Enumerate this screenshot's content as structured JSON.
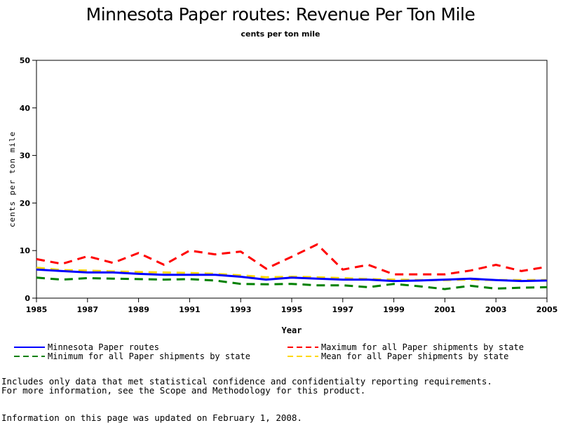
{
  "chart_data": {
    "type": "line",
    "title": "Minnesota Paper routes: Revenue Per Ton Mile",
    "subtitle": "cents per ton mile",
    "xlabel": "Year",
    "ylabel": "cents per ton mile",
    "xlim": [
      1985,
      2005
    ],
    "ylim": [
      0,
      50
    ],
    "xticks": [
      "1985",
      "1987",
      "1989",
      "1991",
      "1993",
      "1995",
      "1997",
      "1999",
      "2001",
      "2003",
      "2005"
    ],
    "yticks": [
      "0",
      "10",
      "20",
      "30",
      "40",
      "50"
    ],
    "grid": false,
    "x": [
      1985,
      1986,
      1987,
      1988,
      1989,
      1990,
      1991,
      1992,
      1993,
      1994,
      1995,
      1996,
      1997,
      1998,
      1999,
      2000,
      2001,
      2002,
      2003,
      2004,
      2005
    ],
    "series": [
      {
        "name": "Minnesota Paper routes",
        "color": "#0000ff",
        "style": "solid",
        "values": [
          6.0,
          5.7,
          5.4,
          5.4,
          5.1,
          4.9,
          4.9,
          4.9,
          4.5,
          3.9,
          4.3,
          4.1,
          3.9,
          3.9,
          3.6,
          3.7,
          3.9,
          4.1,
          3.8,
          3.6,
          3.7
        ]
      },
      {
        "name": "Maximum for all Paper shipments by state",
        "color": "#ff0000",
        "style": "dashed",
        "values": [
          8.2,
          7.2,
          8.8,
          7.4,
          9.5,
          7.0,
          10.0,
          9.2,
          9.8,
          6.2,
          8.7,
          11.3,
          6.0,
          7.0,
          5.0,
          5.0,
          5.0,
          5.8,
          7.0,
          5.7,
          6.6
        ]
      },
      {
        "name": "Minimum for all Paper shipments by state",
        "color": "#008000",
        "style": "dashed",
        "values": [
          4.3,
          3.9,
          4.2,
          4.1,
          4.0,
          3.9,
          4.0,
          3.7,
          3.0,
          2.9,
          3.0,
          2.7,
          2.7,
          2.3,
          3.0,
          2.5,
          1.9,
          2.6,
          2.0,
          2.2,
          2.3
        ]
      },
      {
        "name": "Mean for all Paper shipments by state",
        "color": "#ffd700",
        "style": "dashed",
        "values": [
          6.4,
          5.9,
          5.8,
          5.6,
          5.5,
          5.4,
          5.3,
          5.1,
          4.8,
          4.4,
          4.5,
          4.4,
          4.2,
          4.0,
          3.9,
          3.8,
          3.8,
          3.9,
          3.8,
          3.8,
          3.8
        ]
      }
    ]
  },
  "legend": {
    "items": [
      "Minnesota Paper routes",
      "Maximum for all Paper shipments by state",
      "Minimum for all Paper shipments by state",
      "Mean for all Paper shipments by state"
    ]
  },
  "notes": {
    "line1": "Includes only data that met statistical confidence and confidentialty reporting requirements.",
    "line2": "For more information, see the Scope and Methodology for this product.",
    "line3": "Information on this page was updated on February 1, 2008."
  }
}
